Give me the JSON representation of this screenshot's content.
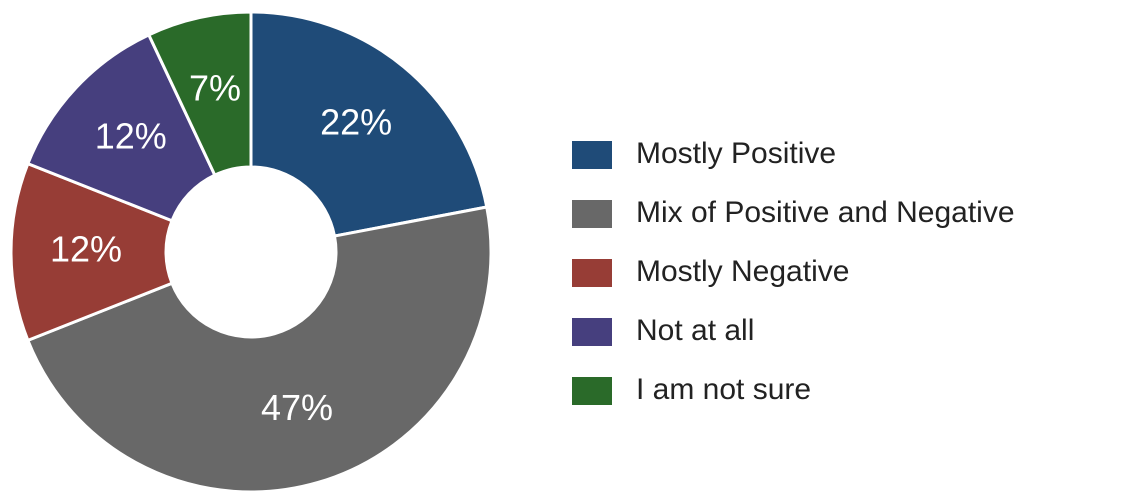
{
  "chart_data": {
    "type": "pie",
    "categories": [
      "Mostly Positive",
      "Mix of Positive and Negative",
      "Mostly Negative",
      "Not at all",
      "I am not sure"
    ],
    "values": [
      22,
      47,
      12,
      12,
      7
    ],
    "value_labels": [
      "22%",
      "47%",
      "12%",
      "12%",
      "7%"
    ],
    "colors": [
      "#1f4b78",
      "#686868",
      "#973d36",
      "#463f7e",
      "#2a6a29"
    ],
    "legend": "right"
  }
}
